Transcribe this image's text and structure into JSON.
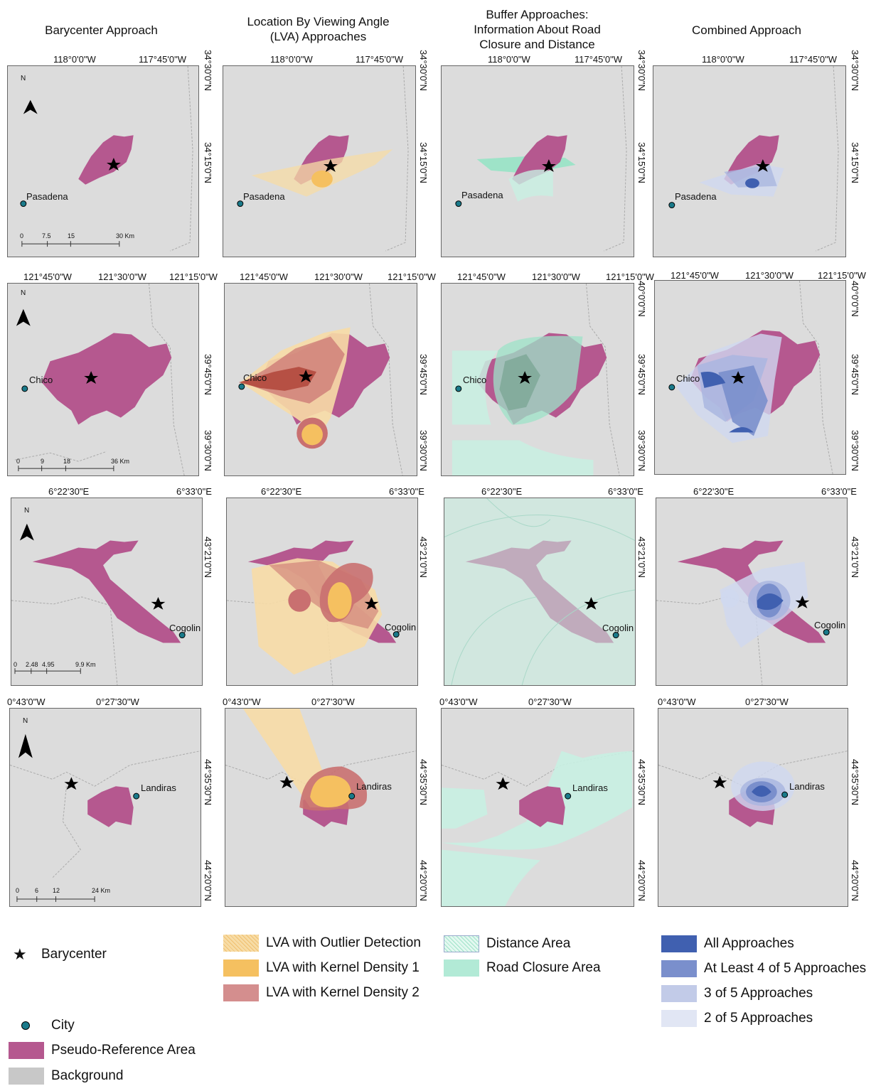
{
  "columns": [
    {
      "title": "Barycenter Approach"
    },
    {
      "title": "Location By Viewing Angle (LVA) Approaches"
    },
    {
      "title": "Buffer Approaches: Information About Road Closure and Distance"
    },
    {
      "title": "Combined Approach"
    }
  ],
  "rows": [
    {
      "city": "Pasadena",
      "lon_ticks": [
        "118°0'0\"W",
        "117°45'0\"W"
      ],
      "lat_ticks": [
        "34°30'0\"N",
        "34°15'0\"N"
      ],
      "scale": [
        "0",
        "7.5",
        "15",
        "30 Km"
      ]
    },
    {
      "city": "Chico",
      "lon_ticks": [
        "121°45'0\"W",
        "121°30'0\"W",
        "121°15'0\"W"
      ],
      "lat_ticks": [
        "40°0'0\"N",
        "39°45'0\"N",
        "39°30'0\"N"
      ],
      "scale": [
        "0",
        "9",
        "18",
        "36 Km"
      ]
    },
    {
      "city": "Cogolin",
      "lon_ticks": [
        "6°22'30\"E",
        "6°33'0\"E"
      ],
      "lat_ticks": [
        "43°21'0\"N"
      ],
      "scale": [
        "0",
        "2.48",
        "4.95",
        "9.9 Km"
      ]
    },
    {
      "city": "Landiras",
      "lon_ticks": [
        "0°43'0\"W",
        "0°27'30\"W"
      ],
      "lat_ticks": [
        "44°35'30\"N",
        "44°20'0\"N"
      ],
      "scale": [
        "0",
        "6",
        "12",
        "24 Km"
      ]
    }
  ],
  "north": "N",
  "legend": {
    "barycenter": "Barycenter",
    "city": "City",
    "pseudo_reference": "Pseudo-Reference Area",
    "background": "Background",
    "lva_outlier": "LVA with Outlier Detection",
    "lva_kd1": "LVA with Kernel Density 1",
    "lva_kd2": "LVA with Kernel Density 2",
    "distance_area": "Distance Area",
    "road_closure": "Road Closure Area",
    "all_approaches": "All Approaches",
    "at_least_4": "At Least 4 of 5 Approaches",
    "three_of_5": "3 of 5 Approaches",
    "two_of_5": "2 of 5 Approaches"
  },
  "colors": {
    "pseudo": "#b5588f",
    "background": "#dcdcdc",
    "lva_outlier": "#f7dca6",
    "lva_kd1": "#f5c060",
    "lva_kd2": "#c97070",
    "distance": "#c8f0e2",
    "road": "#9ee3c8",
    "all": "#4060b0",
    "four": "#7a8fcc",
    "three": "#aab6e0",
    "two": "#d0d8f0",
    "city": "#1a7a8a"
  }
}
